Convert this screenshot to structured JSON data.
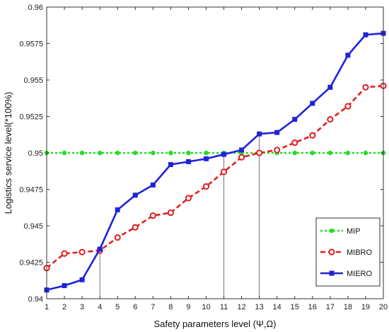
{
  "chart_data": {
    "type": "line",
    "xlabel": "Safety parameters level (Ψ,Ω)",
    "ylabel": "Logistics service level(*100%)",
    "x": [
      1,
      2,
      3,
      4,
      5,
      6,
      7,
      8,
      9,
      10,
      11,
      12,
      13,
      14,
      15,
      16,
      17,
      18,
      19,
      20
    ],
    "xlim": [
      1,
      20
    ],
    "ylim": [
      0.94,
      0.96
    ],
    "yticks": [
      0.94,
      0.9425,
      0.945,
      0.9475,
      0.95,
      0.9525,
      0.955,
      0.9575,
      0.96
    ],
    "ytick_labels": [
      "0.94",
      "0.9425",
      "0.945",
      "0.9475",
      "0.95",
      "0.9525",
      "0.955",
      "0.9575",
      "0.96"
    ],
    "xtick_labels": [
      "1",
      "2",
      "3",
      "4",
      "5",
      "6",
      "7",
      "8",
      "9",
      "10",
      "11",
      "12",
      "13",
      "14",
      "15",
      "16",
      "17",
      "18",
      "19",
      "20"
    ],
    "grid": false,
    "legend_position": "bottom-right",
    "series": [
      {
        "name": "MIP",
        "color": "#22dd22",
        "line_style": "dotted",
        "marker": "filled-circle",
        "values": [
          0.95,
          0.95,
          0.95,
          0.95,
          0.95,
          0.95,
          0.95,
          0.95,
          0.95,
          0.95,
          0.95,
          0.95,
          0.95,
          0.95,
          0.95,
          0.95,
          0.95,
          0.95,
          0.95,
          0.95
        ]
      },
      {
        "name": "MIBRO",
        "color": "#e02020",
        "line_style": "dashed",
        "marker": "open-circle",
        "values": [
          0.9421,
          0.9431,
          0.9432,
          0.9433,
          0.9442,
          0.9449,
          0.9457,
          0.9459,
          0.9469,
          0.9477,
          0.9487,
          0.9497,
          0.95,
          0.9502,
          0.9507,
          0.9512,
          0.9523,
          0.9532,
          0.9545,
          0.9546
        ]
      },
      {
        "name": "MIERO",
        "color": "#1f22d8",
        "line_style": "solid",
        "marker": "filled-square",
        "values": [
          0.9406,
          0.9409,
          0.9413,
          0.9434,
          0.9461,
          0.9471,
          0.9478,
          0.9492,
          0.9494,
          0.9496,
          0.9499,
          0.9502,
          0.9513,
          0.9514,
          0.9523,
          0.9534,
          0.9545,
          0.9567,
          0.9581,
          0.9582
        ]
      }
    ],
    "reference_lines_x": [
      4,
      11,
      13
    ]
  }
}
